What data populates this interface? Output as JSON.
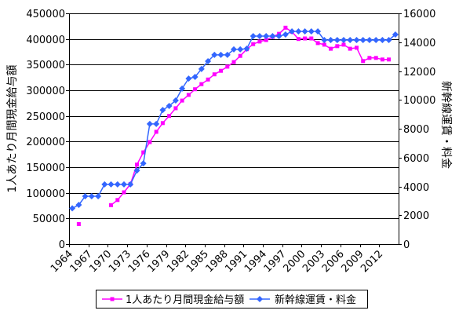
{
  "chart_data": {
    "type": "line",
    "x": [
      1964,
      1965,
      1966,
      1967,
      1968,
      1969,
      1970,
      1971,
      1972,
      1973,
      1974,
      1975,
      1976,
      1977,
      1978,
      1979,
      1980,
      1981,
      1982,
      1983,
      1984,
      1985,
      1986,
      1987,
      1988,
      1989,
      1990,
      1991,
      1992,
      1993,
      1994,
      1995,
      1996,
      1997,
      1998,
      1999,
      2000,
      2001,
      2002,
      2003,
      2004,
      2005,
      2006,
      2007,
      2008,
      2009,
      2010,
      2011,
      2012,
      2013,
      2014
    ],
    "x_tick_labels": [
      "1964",
      "1967",
      "1970",
      "1973",
      "1976",
      "1979",
      "1982",
      "1985",
      "1988",
      "1991",
      "1994",
      "1997",
      "2000",
      "2003",
      "2006",
      "2009",
      "2012"
    ],
    "y_left": {
      "label": "1人あたり月間現金給与額",
      "lim": [
        0,
        450000
      ],
      "tick_labels": [
        "0",
        "50000",
        "100000",
        "150000",
        "200000",
        "250000",
        "300000",
        "350000",
        "400000",
        "450000"
      ]
    },
    "y_right": {
      "label": "新幹線運賃・料金",
      "lim": [
        0,
        16000
      ],
      "tick_labels": [
        "0",
        "2000",
        "4000",
        "6000",
        "8000",
        "10000",
        "12000",
        "14000",
        "16000"
      ]
    },
    "series": [
      {
        "name": "1人あたり月間現金給与額",
        "axis": "left",
        "color": "#FF00FF",
        "marker": "square",
        "values": [
          null,
          39000,
          null,
          null,
          null,
          null,
          76000,
          86000,
          101000,
          117000,
          155000,
          179000,
          199000,
          219000,
          236000,
          250000,
          265000,
          280000,
          291000,
          302000,
          312000,
          321000,
          331000,
          338000,
          346000,
          355000,
          367000,
          380000,
          390000,
          395000,
          398000,
          404000,
          410000,
          422000,
          414000,
          400000,
          401000,
          401000,
          392000,
          389000,
          381000,
          386000,
          389000,
          381000,
          383000,
          357000,
          363000,
          363000,
          360000,
          360000,
          null
        ]
      },
      {
        "name": "新幹線運賃・料金",
        "axis": "right",
        "color": "#3366FF",
        "marker": "diamond",
        "values": [
          2480,
          2720,
          3320,
          3320,
          3320,
          4140,
          4140,
          4140,
          4140,
          4140,
          5100,
          5600,
          8330,
          8330,
          9300,
          9580,
          9960,
          10780,
          11480,
          11590,
          12140,
          12680,
          13120,
          13120,
          13120,
          13500,
          13500,
          13550,
          14420,
          14420,
          14420,
          14420,
          14420,
          14530,
          14750,
          14750,
          14750,
          14750,
          14750,
          14150,
          14150,
          14150,
          14150,
          14150,
          14150,
          14150,
          14150,
          14150,
          14150,
          14150,
          14530
        ]
      }
    ],
    "grid": true,
    "legend": "bottom"
  }
}
